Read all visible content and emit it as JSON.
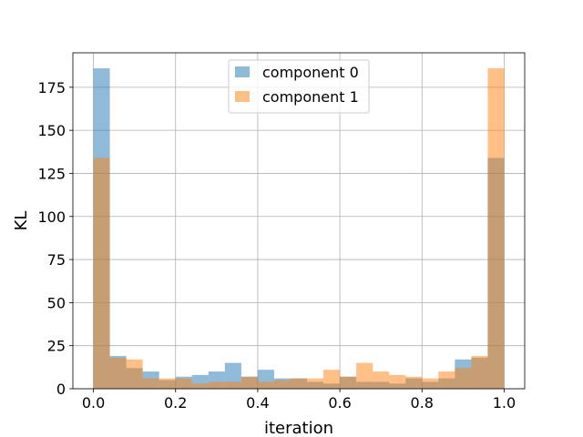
{
  "chart_data": {
    "type": "bar",
    "subtype": "overlaid-histogram",
    "xlabel": "iteration",
    "ylabel": "KL",
    "xlim": [
      -0.05,
      1.05
    ],
    "ylim": [
      0,
      195
    ],
    "xticks": [
      0.0,
      0.2,
      0.4,
      0.6,
      0.8,
      1.0
    ],
    "xtick_labels": [
      "0.0",
      "0.2",
      "0.4",
      "0.6",
      "0.8",
      "1.0"
    ],
    "yticks": [
      0,
      25,
      50,
      75,
      100,
      125,
      150,
      175
    ],
    "ytick_labels": [
      "0",
      "25",
      "50",
      "75",
      "100",
      "125",
      "150",
      "175"
    ],
    "grid": true,
    "legend_position": "top-center",
    "bin_edges": [
      0.0,
      0.04,
      0.08,
      0.12,
      0.16,
      0.2,
      0.24,
      0.28,
      0.32,
      0.36,
      0.4,
      0.44,
      0.48,
      0.52,
      0.56,
      0.6,
      0.64,
      0.68,
      0.72,
      0.76,
      0.8,
      0.84,
      0.88,
      0.92,
      0.96,
      1.0
    ],
    "series": [
      {
        "name": "component 0",
        "color": "#1f77b4",
        "opacity": 0.5,
        "values": [
          186,
          19,
          12,
          10,
          5,
          7,
          8,
          10,
          15,
          7,
          11,
          6,
          6,
          4,
          3,
          7,
          4,
          4,
          3,
          6,
          4,
          6,
          17,
          18,
          134
        ]
      },
      {
        "name": "component 1",
        "color": "#ff7f0e",
        "opacity": 0.5,
        "values": [
          134,
          18,
          17,
          6,
          6,
          6,
          3,
          4,
          4,
          7,
          4,
          5,
          6,
          6,
          11,
          7,
          15,
          10,
          8,
          7,
          6,
          10,
          12,
          19,
          186
        ]
      }
    ]
  }
}
